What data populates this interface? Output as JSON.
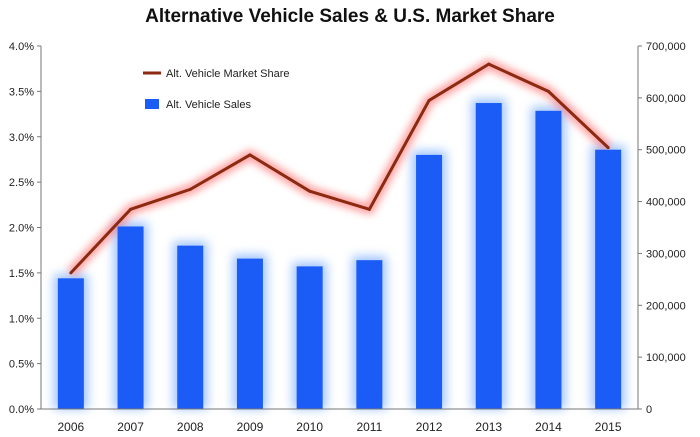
{
  "chart_data": {
    "type": "bar+line",
    "title": "Alternative Vehicle Sales & U.S. Market Share",
    "categories": [
      "2006",
      "2007",
      "2008",
      "2009",
      "2010",
      "2011",
      "2012",
      "2013",
      "2014",
      "2015"
    ],
    "left_axis": {
      "ylim": [
        0,
        4.0
      ],
      "ticks": [
        0,
        0.5,
        1.0,
        1.5,
        2.0,
        2.5,
        3.0,
        3.5,
        4.0
      ],
      "tick_labels": [
        "0.0%",
        "0.5%",
        "1.0%",
        "1.5%",
        "2.0%",
        "2.5%",
        "3.0%",
        "3.5%",
        "4.0%"
      ]
    },
    "right_axis": {
      "ylim": [
        0,
        700000
      ],
      "ticks": [
        0,
        100000,
        200000,
        300000,
        400000,
        500000,
        600000,
        700000
      ],
      "tick_labels": [
        "0",
        "100,000",
        "200,000",
        "300,000",
        "400,000",
        "500,000",
        "600,000",
        "700,000"
      ]
    },
    "series": [
      {
        "name": "Alt. Vehicle Sales",
        "type": "bar",
        "axis": "right",
        "color": "#1a5cf5",
        "values": [
          252000,
          352000,
          315000,
          290000,
          275000,
          287000,
          490000,
          590000,
          575000,
          500000
        ]
      },
      {
        "name": "Alt. Vehicle Market Share",
        "type": "line",
        "axis": "left",
        "color": "#8b2a10",
        "values": [
          1.5,
          2.2,
          2.42,
          2.8,
          2.4,
          2.2,
          3.4,
          3.8,
          3.5,
          2.88
        ]
      }
    ],
    "legend": {
      "position": "top-left",
      "entries": [
        "Alt. Vehicle Market Share",
        "Alt. Vehicle Sales"
      ]
    },
    "grid": false
  }
}
